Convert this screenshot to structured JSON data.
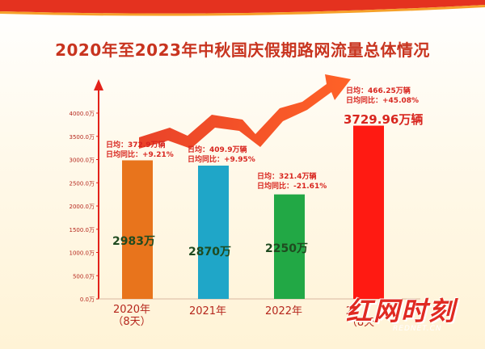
{
  "title": "2020年至2023年中秋国庆假期路网流量总体情况",
  "chart_data": {
    "type": "bar",
    "title": "2020年至2023年中秋国庆假期路网流量总体情况",
    "categories": [
      "2020年（8天）",
      "2021年",
      "2022年",
      "2023年（8天）"
    ],
    "values": [
      2983,
      2870,
      2250,
      3729.96
    ],
    "value_labels": [
      "2983万",
      "2870万",
      "2250万",
      "3729.96万辆"
    ],
    "annotations": [
      [
        "日均：372.9万辆",
        "日均同比：+9.21%"
      ],
      [
        "日均：409.9万辆",
        "日均同比：+9.95%"
      ],
      [
        "日均：321.4万辆",
        "日均同比：-21.61%"
      ],
      [
        "日均：466.25万辆",
        "日均同比：+45.08%"
      ]
    ],
    "yticks": [
      "0.0万",
      "500.0万",
      "1000.0万",
      "1500.0万",
      "2000.0万",
      "2500.0万",
      "3000.0万",
      "3500.0万",
      "4000.0万"
    ],
    "ylim": [
      0,
      4000
    ],
    "xlabel": "",
    "ylabel": "",
    "grid": false,
    "colors": [
      "#e8741c",
      "#1fa6c8",
      "#22a845",
      "#ff1a12"
    ]
  },
  "x_labels": {
    "y2020": "2020年",
    "y2020_sub": "（8天）",
    "y2021": "2021年",
    "y2022": "2022年",
    "y2023_partial": "2",
    "y2023_sub": "（8天"
  },
  "logo": {
    "text": "红网时刻",
    "sub": "REDNET.CN",
    "color": "#e02a22"
  }
}
